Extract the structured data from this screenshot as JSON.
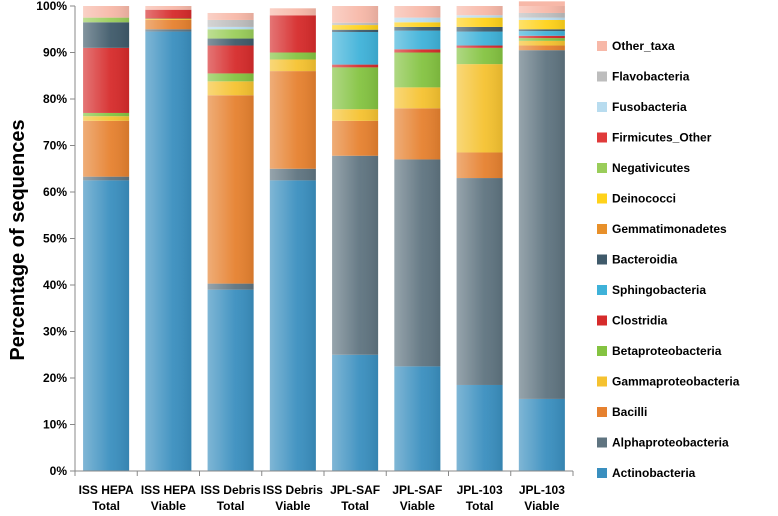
{
  "chart_data": {
    "type": "bar",
    "stacked": true,
    "title": "",
    "xlabel": "",
    "ylabel": "Percentage of sequences",
    "ylim": [
      0,
      100
    ],
    "yticks": [
      "0%",
      "10%",
      "20%",
      "30%",
      "40%",
      "50%",
      "60%",
      "70%",
      "80%",
      "90%",
      "100%"
    ],
    "legend_position": "right",
    "categories": [
      [
        "ISS HEPA",
        "Total"
      ],
      [
        "ISS HEPA",
        "Viable"
      ],
      [
        "ISS Debris",
        "Total"
      ],
      [
        "ISS Debris",
        "Viable"
      ],
      [
        "JPL-SAF",
        "Total"
      ],
      [
        "JPL-SAF",
        "Viable"
      ],
      [
        "JPL-103",
        "Total"
      ],
      [
        "JPL-103",
        "Viable"
      ]
    ],
    "series": [
      {
        "name": "Actinobacteria",
        "color": "#3a8fbf",
        "values": [
          62.5,
          94.5,
          39,
          62.5,
          25,
          22.5,
          18.5,
          15.5
        ]
      },
      {
        "name": "Alphaproteobacteria",
        "color": "#5f7480",
        "values": [
          0.8,
          0.5,
          1.3,
          2.5,
          42.8,
          44.5,
          44.5,
          75
        ]
      },
      {
        "name": "Bacilli",
        "color": "#e6812f",
        "values": [
          12,
          2,
          40.5,
          21,
          7.5,
          11,
          5.5,
          1
        ]
      },
      {
        "name": "Gammaproteobacteria",
        "color": "#f5c230",
        "values": [
          1,
          0.2,
          3,
          2.5,
          2.5,
          4.5,
          19,
          1
        ]
      },
      {
        "name": "Betaproteobacteria",
        "color": "#84c341",
        "values": [
          0.7,
          0.1,
          1.7,
          1.5,
          9,
          7.5,
          3.5,
          0.6
        ]
      },
      {
        "name": "Clostridia",
        "color": "#d62b2b",
        "values": [
          14,
          1.9,
          6,
          8,
          0.6,
          0.7,
          0.5,
          0.5
        ]
      },
      {
        "name": "Sphingobacteria",
        "color": "#3fb2d9",
        "values": [
          0,
          0,
          0,
          0,
          7,
          4,
          3,
          1
        ]
      },
      {
        "name": "Bacteroidia",
        "color": "#3f5a6a",
        "values": [
          5.5,
          0,
          1.5,
          0,
          0.5,
          0.8,
          1,
          0.4
        ]
      },
      {
        "name": "Gemmatimonadetes",
        "color": "#e8902a",
        "values": [
          0,
          0,
          0,
          0,
          0,
          0,
          0,
          0
        ]
      },
      {
        "name": "Deinococci",
        "color": "#ffd21a",
        "values": [
          0,
          0,
          0,
          0,
          1,
          1,
          2,
          2
        ]
      },
      {
        "name": "Negativicutes",
        "color": "#9acd5a",
        "values": [
          1,
          0,
          2,
          0,
          0,
          0,
          0,
          0
        ]
      },
      {
        "name": "Firmicutes_Other",
        "color": "#e03a3a",
        "values": [
          0,
          0,
          0,
          0,
          0,
          0,
          0,
          0
        ]
      },
      {
        "name": "Fusobacteria",
        "color": "#b8dcef",
        "values": [
          0,
          0,
          0.5,
          0,
          0,
          1,
          0.5,
          0.5
        ]
      },
      {
        "name": "Flavobacteria",
        "color": "#bdbdbd",
        "values": [
          0,
          0,
          1.5,
          0,
          0.5,
          0,
          0,
          1
        ]
      },
      {
        "name": "Other_taxa",
        "color": "#f7b8a8",
        "values": [
          2.5,
          0.8,
          1.5,
          1.5,
          3.6,
          2.5,
          2,
          2.5
        ]
      }
    ]
  }
}
